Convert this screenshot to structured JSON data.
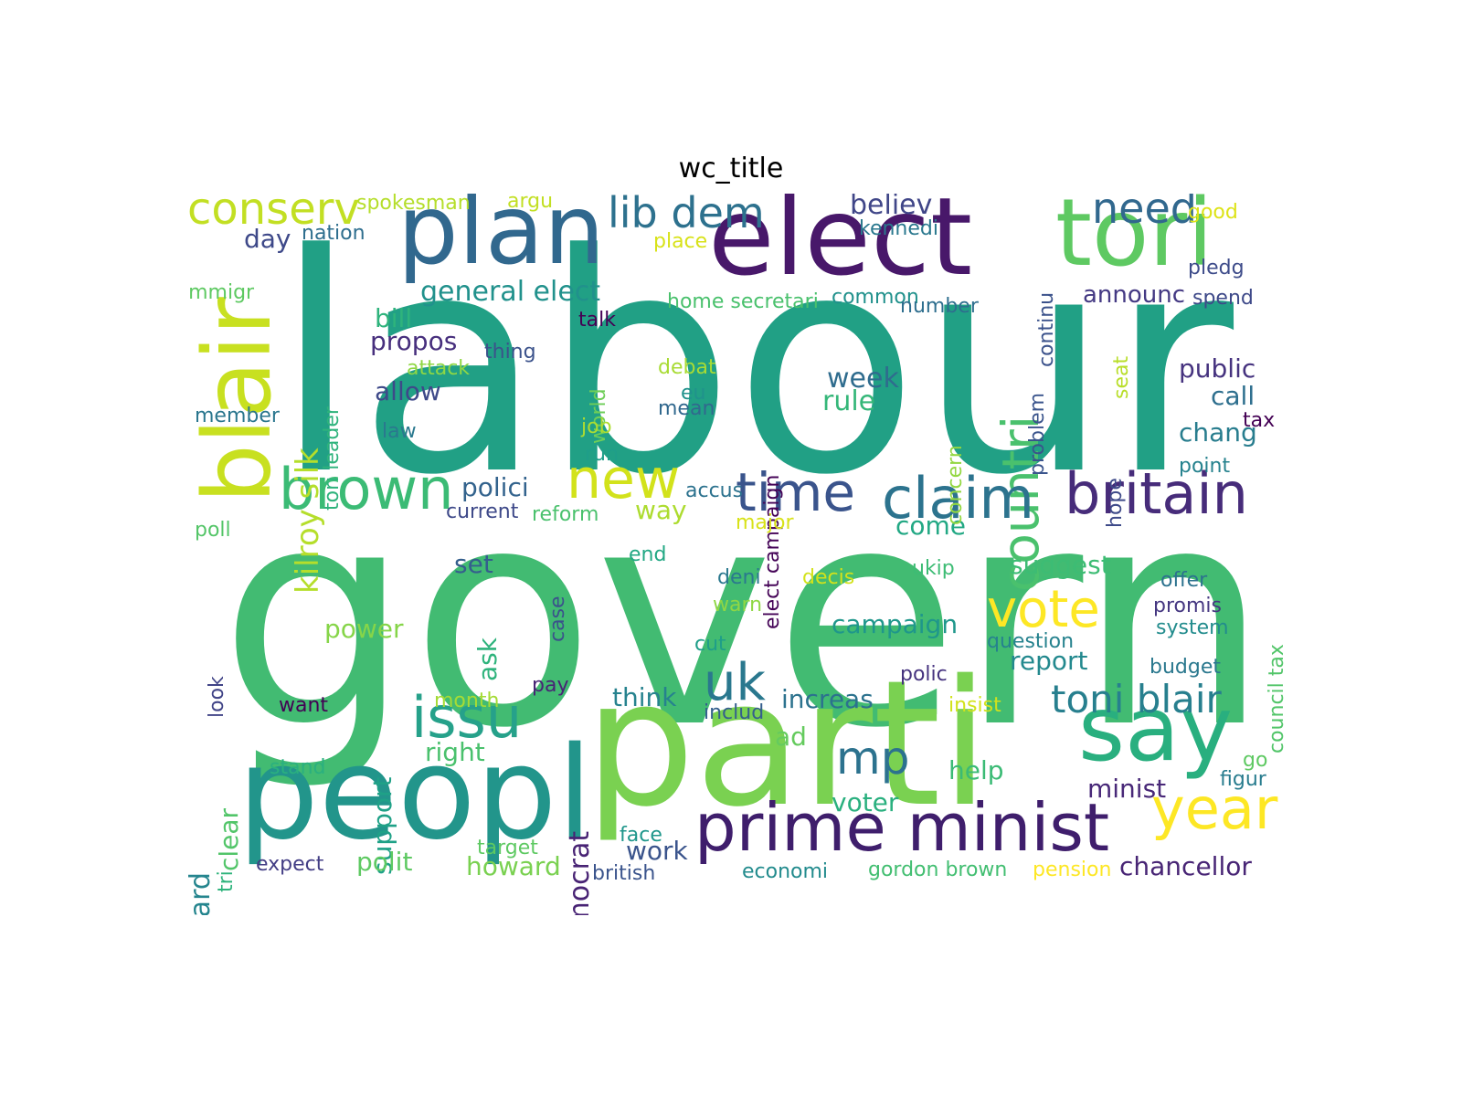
{
  "title": "wc_title",
  "words": [
    {
      "t": "labour",
      "c": "#21a085",
      "v": 0
    },
    {
      "t": "govern",
      "c": "#42bb72",
      "v": 0
    },
    {
      "t": "parti",
      "c": "#7ad151",
      "v": 0
    },
    {
      "t": "peopl",
      "c": "#22958b",
      "v": 0
    },
    {
      "t": "elect",
      "c": "#48186a",
      "v": 0
    },
    {
      "t": "plan",
      "c": "#31688e",
      "v": 0
    },
    {
      "t": "tori",
      "c": "#5ec962",
      "v": 0
    },
    {
      "t": "say",
      "c": "#29af7f",
      "v": 0
    },
    {
      "t": "blair",
      "c": "#c8e020",
      "v": 1
    },
    {
      "t": "prime minist",
      "c": "#3f1e6c",
      "v": 0
    },
    {
      "t": "countri",
      "c": "#4ac16d",
      "v": 1
    },
    {
      "t": "britain",
      "c": "#472c7a",
      "v": 0
    },
    {
      "t": "claim",
      "c": "#2c738e",
      "v": 0
    },
    {
      "t": "brown",
      "c": "#3bbb75",
      "v": 0
    },
    {
      "t": "issu",
      "c": "#26a18a",
      "v": 0
    },
    {
      "t": "year",
      "c": "#fde725",
      "v": 0
    },
    {
      "t": "time",
      "c": "#3a548c",
      "v": 0
    },
    {
      "t": "vote",
      "c": "#fde725",
      "v": 0
    },
    {
      "t": "uk",
      "c": "#2a788e",
      "v": 0
    },
    {
      "t": "new",
      "c": "#d2e21b",
      "v": 0
    },
    {
      "t": "mp",
      "c": "#2c728e",
      "v": 0
    },
    {
      "t": "toni blair",
      "c": "#277f8e",
      "v": 0
    },
    {
      "t": "conserv",
      "c": "#c2df23",
      "v": 0
    },
    {
      "t": "lib dem",
      "c": "#2d718e",
      "v": 0
    },
    {
      "t": "need",
      "c": "#31688e",
      "v": 0
    },
    {
      "t": "kilroy silk",
      "c": "#b5de2b",
      "v": 1
    },
    {
      "t": "liber democrat",
      "c": "#482374",
      "v": 1
    },
    {
      "t": "michael howard",
      "c": "#25858e",
      "v": 1
    },
    {
      "t": "general elect",
      "c": "#21918c",
      "v": 0
    },
    {
      "t": "believ",
      "c": "#404688",
      "v": 0
    },
    {
      "t": "announc",
      "c": "#443983",
      "v": 0
    },
    {
      "t": "polici",
      "c": "#33638d",
      "v": 0
    },
    {
      "t": "public",
      "c": "#46337f",
      "v": 0
    },
    {
      "t": "week",
      "c": "#2f6c8e",
      "v": 0
    },
    {
      "t": "rule",
      "c": "#35b779",
      "v": 0
    },
    {
      "t": "call",
      "c": "#2e6f8e",
      "v": 0
    },
    {
      "t": "chang",
      "c": "#287d8e",
      "v": 0
    },
    {
      "t": "bill",
      "c": "#2eb37c",
      "v": 0
    },
    {
      "t": "propos",
      "c": "#472f7d",
      "v": 0
    },
    {
      "t": "allow",
      "c": "#3e4989",
      "v": 0
    },
    {
      "t": "campaign",
      "c": "#1f978b",
      "v": 0
    },
    {
      "t": "report",
      "c": "#23898e",
      "v": 0
    },
    {
      "t": "suggest",
      "c": "#3dbc74",
      "v": 0
    },
    {
      "t": "come",
      "c": "#22a884",
      "v": 0
    },
    {
      "t": "way",
      "c": "#addc30",
      "v": 0
    },
    {
      "t": "set",
      "c": "#355f8d",
      "v": 0
    },
    {
      "t": "increas",
      "c": "#2c728e",
      "v": 0
    },
    {
      "t": "think",
      "c": "#26828e",
      "v": 0
    },
    {
      "t": "support",
      "c": "#1fa187",
      "v": 1
    },
    {
      "t": "right",
      "c": "#4ac16d",
      "v": 0
    },
    {
      "t": "help",
      "c": "#3bbb75",
      "v": 0
    },
    {
      "t": "minist",
      "c": "#482878",
      "v": 0
    },
    {
      "t": "voter",
      "c": "#2ab07f",
      "v": 0
    },
    {
      "t": "work",
      "c": "#3a548c",
      "v": 0
    },
    {
      "t": "howard",
      "c": "#7ad151",
      "v": 0
    },
    {
      "t": "polit",
      "c": "#5ec962",
      "v": 0
    },
    {
      "t": "chancellor",
      "c": "#482575",
      "v": 0
    },
    {
      "t": "power",
      "c": "#86d549",
      "v": 0
    },
    {
      "t": "ask",
      "c": "#2eb37c",
      "v": 1
    },
    {
      "t": "ad",
      "c": "#65cb5e",
      "v": 0
    },
    {
      "t": "day",
      "c": "#3e4989",
      "v": 0
    },
    {
      "t": "clear",
      "c": "#52c569",
      "v": 1
    },
    {
      "t": "spokesman",
      "c": "#b5de2b",
      "v": 0
    },
    {
      "t": "argu",
      "c": "#c2df23",
      "v": 0
    },
    {
      "t": "nation",
      "c": "#2e6e8e",
      "v": 0
    },
    {
      "t": "place",
      "c": "#d8e219",
      "v": 0
    },
    {
      "t": "kennedi",
      "c": "#2a788e",
      "v": 0
    },
    {
      "t": "good",
      "c": "#dde318",
      "v": 0
    },
    {
      "t": "continu",
      "c": "#3b528b",
      "v": 1
    },
    {
      "t": "pledg",
      "c": "#3e4c8a",
      "v": 0
    },
    {
      "t": "spend",
      "c": "#3e4989",
      "v": 0
    },
    {
      "t": "immigr",
      "c": "#5ec962",
      "v": 0
    },
    {
      "t": "home secretari",
      "c": "#4ac16d",
      "v": 0
    },
    {
      "t": "common",
      "c": "#21918c",
      "v": 0
    },
    {
      "t": "number",
      "c": "#2e6e8e",
      "v": 0
    },
    {
      "t": "tori leader",
      "c": "#2eb37c",
      "v": 1
    },
    {
      "t": "talk",
      "c": "#440154",
      "v": 0
    },
    {
      "t": "elect campaign",
      "c": "#450457",
      "v": 1
    },
    {
      "t": "seat",
      "c": "#b8de29",
      "v": 1
    },
    {
      "t": "problem",
      "c": "#3a548c",
      "v": 1
    },
    {
      "t": "thing",
      "c": "#3b528b",
      "v": 0
    },
    {
      "t": "attack",
      "c": "#8fd744",
      "v": 0
    },
    {
      "t": "world",
      "c": "#6ece58",
      "v": 1
    },
    {
      "t": "debat",
      "c": "#a8db34",
      "v": 0
    },
    {
      "t": "eu",
      "c": "#20928c",
      "v": 0
    },
    {
      "t": "mean",
      "c": "#31688e",
      "v": 0
    },
    {
      "t": "member",
      "c": "#2a768e",
      "v": 0
    },
    {
      "t": "law",
      "c": "#2a788e",
      "v": 0
    },
    {
      "t": "concern",
      "c": "#93d741",
      "v": 1
    },
    {
      "t": "job",
      "c": "#addc30",
      "v": 0
    },
    {
      "t": "tax",
      "c": "#440154",
      "v": 0
    },
    {
      "t": "run",
      "c": "#1f9e89",
      "v": 0
    },
    {
      "t": "hope",
      "c": "#3e4a89",
      "v": 1
    },
    {
      "t": "point",
      "c": "#26828e",
      "v": 0
    },
    {
      "t": "accus",
      "c": "#2c728e",
      "v": 0
    },
    {
      "t": "current",
      "c": "#3e4989",
      "v": 0
    },
    {
      "t": "reform",
      "c": "#4ac16d",
      "v": 0
    },
    {
      "t": "major",
      "c": "#d8e219",
      "v": 0
    },
    {
      "t": "poll",
      "c": "#54c568",
      "v": 0
    },
    {
      "t": "end",
      "c": "#22a884",
      "v": 0
    },
    {
      "t": "case",
      "c": "#3b528b",
      "v": 1
    },
    {
      "t": "deni",
      "c": "#2a788e",
      "v": 0
    },
    {
      "t": "decis",
      "c": "#d2e21b",
      "v": 0
    },
    {
      "t": "ukip",
      "c": "#3dbc74",
      "v": 0
    },
    {
      "t": "offer",
      "c": "#2c728e",
      "v": 0
    },
    {
      "t": "council tax",
      "c": "#52c569",
      "v": 1
    },
    {
      "t": "promis",
      "c": "#453781",
      "v": 0
    },
    {
      "t": "system",
      "c": "#228c8d",
      "v": 0
    },
    {
      "t": "warn",
      "c": "#8fd744",
      "v": 0
    },
    {
      "t": "question",
      "c": "#26828e",
      "v": 0
    },
    {
      "t": "look",
      "c": "#414487",
      "v": 1
    },
    {
      "t": "cut",
      "c": "#1f9e89",
      "v": 0
    },
    {
      "t": "budget",
      "c": "#2a788e",
      "v": 0
    },
    {
      "t": "polic",
      "c": "#46337f",
      "v": 0
    },
    {
      "t": "pay",
      "c": "#482475",
      "v": 0
    },
    {
      "t": "includ",
      "c": "#355f8d",
      "v": 0
    },
    {
      "t": "want",
      "c": "#440154",
      "v": 0
    },
    {
      "t": "month",
      "c": "#a5db36",
      "v": 0
    },
    {
      "t": "insist",
      "c": "#d2e21b",
      "v": 0
    },
    {
      "t": "stand",
      "c": "#2ab07f",
      "v": 0
    },
    {
      "t": "go",
      "c": "#5ec962",
      "v": 0
    },
    {
      "t": "figur",
      "c": "#287c8e",
      "v": 0
    },
    {
      "t": "tri",
      "c": "#2eb37c",
      "v": 1
    },
    {
      "t": "face",
      "c": "#1f968b",
      "v": 0
    },
    {
      "t": "target",
      "c": "#5ec962",
      "v": 0
    },
    {
      "t": "expect",
      "c": "#433e85",
      "v": 0
    },
    {
      "t": "british",
      "c": "#3a548c",
      "v": 0
    },
    {
      "t": "economi",
      "c": "#228b8d",
      "v": 0
    },
    {
      "t": "gordon brown",
      "c": "#42be71",
      "v": 0
    },
    {
      "t": "pension",
      "c": "#fde725",
      "v": 0
    }
  ]
}
